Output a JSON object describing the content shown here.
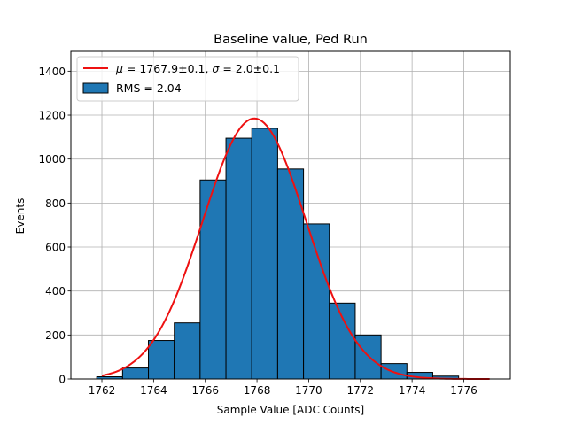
{
  "chart_data": {
    "type": "bar",
    "title": "Baseline value, Ped Run",
    "xlabel": "Sample Value [ADC Counts]",
    "ylabel": "Events",
    "xlim": [
      1760.8,
      1777.8
    ],
    "ylim": [
      0,
      1490
    ],
    "xticks": [
      1762,
      1764,
      1766,
      1768,
      1770,
      1772,
      1774,
      1776
    ],
    "yticks": [
      0,
      200,
      400,
      600,
      800,
      1000,
      1200,
      1400
    ],
    "grid": true,
    "legend_position": "top-left",
    "bin_edges": [
      1761.8,
      1762.8,
      1763.8,
      1764.8,
      1765.8,
      1766.8,
      1767.8,
      1768.8,
      1769.8,
      1770.8,
      1771.8,
      1772.8,
      1773.8,
      1774.8,
      1775.8,
      1776.8
    ],
    "bins": [
      {
        "x": 1762.3,
        "value": 10
      },
      {
        "x": 1763.3,
        "value": 50
      },
      {
        "x": 1764.3,
        "value": 175
      },
      {
        "x": 1765.3,
        "value": 255
      },
      {
        "x": 1766.3,
        "value": 905
      },
      {
        "x": 1767.3,
        "value": 1095
      },
      {
        "x": 1768.3,
        "value": 1140
      },
      {
        "x": 1769.3,
        "value": 955
      },
      {
        "x": 1770.3,
        "value": 705
      },
      {
        "x": 1771.3,
        "value": 345
      },
      {
        "x": 1772.3,
        "value": 200
      },
      {
        "x": 1773.3,
        "value": 70
      },
      {
        "x": 1774.3,
        "value": 30
      },
      {
        "x": 1775.3,
        "value": 13
      },
      {
        "x": 1776.3,
        "value": 0
      }
    ],
    "fit": {
      "type": "gaussian",
      "mu": 1767.9,
      "sigma": 2.0,
      "amplitude": 1185,
      "x_range": [
        1762,
        1777
      ]
    },
    "series": [
      {
        "name": "μ = 1767.9±0.1, σ = 2.0±0.1",
        "kind": "line",
        "color": "#ee1111"
      },
      {
        "name": "RMS = 2.04",
        "kind": "bar",
        "color": "#1f77b4"
      }
    ]
  },
  "legend": {
    "fit_label_mu": "μ",
    "fit_label_mu_value": " = 1767.9±0.1, ",
    "fit_label_sigma": "σ",
    "fit_label_sigma_value": " = 2.0±0.1",
    "rms_label": "RMS = 2.04"
  }
}
